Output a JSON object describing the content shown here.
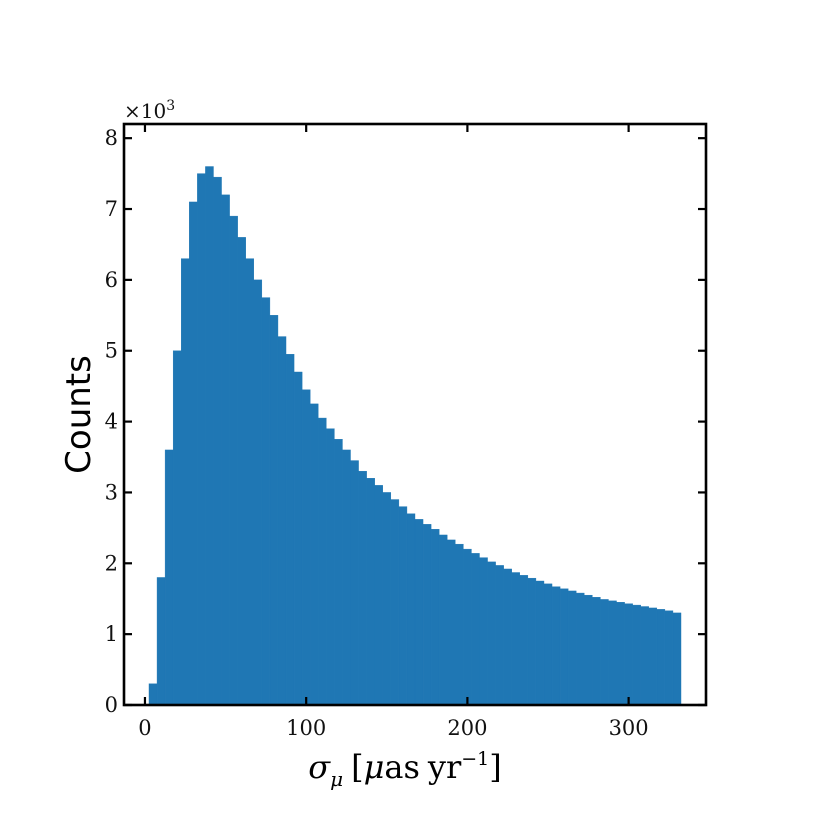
{
  "chart_data": {
    "type": "bar",
    "title": "",
    "xlabel": "",
    "ylabel": "Counts",
    "xlim": [
      -13,
      348
    ],
    "ylim": [
      0,
      8.2
    ],
    "y_scale_multiplier": "×10",
    "y_scale_exponent": "3",
    "x_ticks": [
      "0",
      "100",
      "200",
      "300"
    ],
    "y_ticks": [
      "0",
      "1",
      "2",
      "3",
      "4",
      "5",
      "6",
      "7",
      "8"
    ],
    "bar_color": "#1f77b4",
    "grid": false,
    "legend": "none",
    "x_axis_label_parts": {
      "sigma": "σ",
      "mu_sub": "μ",
      "open": "[",
      "mu": "μ",
      "as": "as",
      "yr": "yr",
      "exp": "−1",
      "close": "]"
    },
    "x": [
      5,
      10,
      15,
      20,
      25,
      30,
      35,
      40,
      45,
      50,
      55,
      60,
      65,
      70,
      75,
      80,
      85,
      90,
      95,
      100,
      105,
      110,
      115,
      120,
      125,
      130,
      135,
      140,
      145,
      150,
      155,
      160,
      165,
      170,
      175,
      180,
      185,
      190,
      195,
      200,
      205,
      210,
      215,
      220,
      225,
      230,
      235,
      240,
      245,
      250,
      255,
      260,
      265,
      270,
      275,
      280,
      285,
      290,
      295,
      300,
      305,
      310,
      315,
      320,
      325,
      330
    ],
    "values": [
      0.3,
      1.8,
      3.6,
      5.0,
      6.3,
      7.1,
      7.5,
      7.6,
      7.45,
      7.2,
      6.9,
      6.6,
      6.3,
      6.0,
      5.75,
      5.5,
      5.2,
      4.95,
      4.7,
      4.45,
      4.25,
      4.05,
      3.9,
      3.75,
      3.6,
      3.45,
      3.3,
      3.2,
      3.1,
      3.0,
      2.9,
      2.8,
      2.7,
      2.62,
      2.55,
      2.48,
      2.4,
      2.33,
      2.27,
      2.2,
      2.14,
      2.08,
      2.02,
      1.97,
      1.92,
      1.87,
      1.83,
      1.79,
      1.75,
      1.71,
      1.67,
      1.64,
      1.61,
      1.58,
      1.55,
      1.52,
      1.49,
      1.47,
      1.45,
      1.43,
      1.41,
      1.39,
      1.37,
      1.35,
      1.33,
      1.3
    ]
  }
}
